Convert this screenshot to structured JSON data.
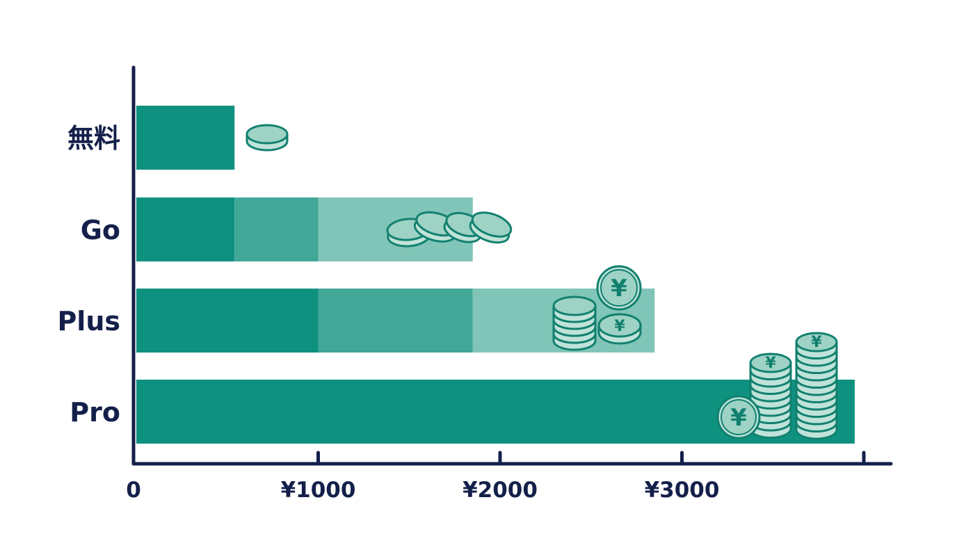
{
  "chart_data": {
    "type": "bar",
    "orientation": "horizontal",
    "stacked": true,
    "title": "",
    "xlabel": "",
    "ylabel": "",
    "categories": [
      "無料",
      "Go",
      "Plus",
      "Pro"
    ],
    "segments": [
      [
        0,
        540
      ],
      [
        0,
        540,
        1000,
        1850
      ],
      [
        0,
        1000,
        1850,
        2850
      ],
      [
        0,
        3950
      ]
    ],
    "segment_colors": [
      "#0f9180",
      "#41a898",
      "#80c5b7"
    ],
    "xlim": [
      0,
      4000
    ],
    "ticks": [
      {
        "value": 0,
        "label": "0",
        "mark": false
      },
      {
        "value": 1000,
        "label": "¥1000",
        "mark": true
      },
      {
        "value": 2000,
        "label": "¥2000",
        "mark": true
      },
      {
        "value": 3000,
        "label": "¥3000",
        "mark": true
      },
      {
        "value": 4000,
        "label": "",
        "mark": true
      }
    ],
    "grid": false,
    "legend": "none",
    "decorations": "coin stacks beside bars",
    "coin_symbol": "¥"
  }
}
